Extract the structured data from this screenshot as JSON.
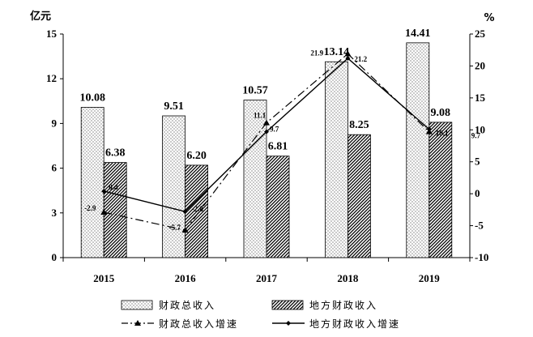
{
  "chart_data": {
    "type": "bar",
    "categories": [
      "2015",
      "2016",
      "2017",
      "2018",
      "2019"
    ],
    "left_axis": {
      "unit": "亿元",
      "ylim": [
        0,
        15
      ],
      "ticks": [
        "0",
        "3",
        "6",
        "9",
        "12",
        "15"
      ]
    },
    "right_axis": {
      "unit": "%",
      "ylim": [
        -10,
        25
      ],
      "ticks": [
        "-10",
        "-5",
        "0",
        "5",
        "10",
        "15",
        "20",
        "25"
      ]
    },
    "bar_series": [
      {
        "name": "财政总收入",
        "values": [
          10.08,
          9.51,
          10.57,
          13.14,
          14.41
        ],
        "labels": [
          "10.08",
          "9.51",
          "10.57",
          "13.14",
          "14.41"
        ],
        "pattern": "dots"
      },
      {
        "name": "地方财政收入",
        "values": [
          6.38,
          6.2,
          6.81,
          8.25,
          9.08
        ],
        "labels": [
          "6.38",
          "6.20",
          "6.81",
          "8.25",
          "9.08"
        ],
        "pattern": "hatch"
      }
    ],
    "line_series": [
      {
        "name": "财政总收入增速",
        "values": [
          -2.9,
          -5.7,
          11.1,
          21.9,
          9.7
        ],
        "labels": [
          "-2.9",
          "-5.7",
          "11.1",
          "21.9",
          "9.7"
        ],
        "style": "dashdot",
        "marker": "triangle"
      },
      {
        "name": "地方财政收入增速",
        "values": [
          0.4,
          -2.8,
          9.7,
          21.2,
          10.1
        ],
        "labels": [
          "0.4",
          "-2.8",
          "9.7",
          "21.2",
          "10.1"
        ],
        "style": "solid",
        "marker": "diamond"
      }
    ],
    "grid": false,
    "legend_position": "bottom"
  }
}
